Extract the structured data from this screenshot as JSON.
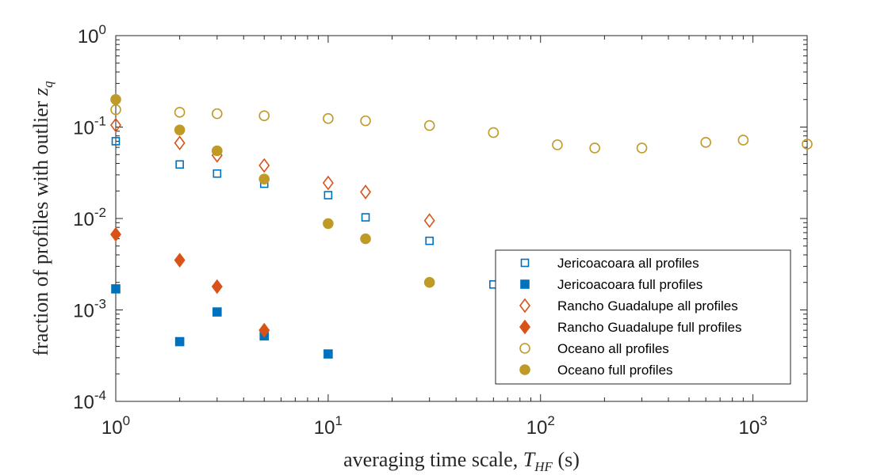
{
  "chart_data": {
    "type": "scatter",
    "xscale": "log",
    "yscale": "log",
    "xlim": [
      1,
      1800
    ],
    "ylim": [
      0.0001,
      1
    ],
    "xticks": [
      {
        "base": "10",
        "exp": "0"
      },
      {
        "base": "10",
        "exp": "1"
      },
      {
        "base": "10",
        "exp": "2"
      },
      {
        "base": "10",
        "exp": "3"
      }
    ],
    "yticks": [
      {
        "base": "10",
        "exp": "0"
      },
      {
        "base": "10",
        "exp": "-1"
      },
      {
        "base": "10",
        "exp": "-2"
      },
      {
        "base": "10",
        "exp": "-3"
      },
      {
        "base": "10",
        "exp": "-4"
      }
    ],
    "xlabel": {
      "main": "averaging time scale, ",
      "var": "T",
      "sub": "HF",
      "unit": " (s)"
    },
    "ylabel": {
      "main": "fraction of profiles with outlier ",
      "var": "z",
      "sub": "q"
    },
    "grid": false,
    "legend_position": "bottom-right",
    "series": [
      {
        "name": "Jericoacoara all profiles",
        "marker": "square",
        "filled": false,
        "color": "#0072BD",
        "x": [
          1,
          2,
          3,
          5,
          10,
          15,
          30,
          60
        ],
        "y": [
          0.07,
          0.039,
          0.031,
          0.024,
          0.018,
          0.0103,
          0.0057,
          0.0019
        ]
      },
      {
        "name": "Jericoacoara full profiles",
        "marker": "square",
        "filled": true,
        "color": "#0072BD",
        "x": [
          1,
          2,
          3,
          5,
          10
        ],
        "y": [
          0.0017,
          0.00045,
          0.00095,
          0.00052,
          0.00033
        ]
      },
      {
        "name": "Rancho Guadalupe all profiles",
        "marker": "diamond",
        "filled": false,
        "color": "#D95319",
        "x": [
          1,
          2,
          3,
          5,
          10,
          15,
          30
        ],
        "y": [
          0.105,
          0.067,
          0.049,
          0.038,
          0.0245,
          0.0195,
          0.0095
        ]
      },
      {
        "name": "Rancho Guadalupe full profiles",
        "marker": "diamond",
        "filled": true,
        "color": "#D95319",
        "x": [
          1,
          2,
          3,
          5
        ],
        "y": [
          0.0067,
          0.0035,
          0.0018,
          0.0006
        ]
      },
      {
        "name": "Oceano all profiles",
        "marker": "circle",
        "filled": false,
        "color": "#BF9A27",
        "x": [
          1,
          2,
          3,
          5,
          10,
          15,
          30,
          60,
          120,
          180,
          300,
          600,
          900,
          1800
        ],
        "y": [
          0.155,
          0.145,
          0.14,
          0.133,
          0.124,
          0.117,
          0.104,
          0.087,
          0.064,
          0.059,
          0.059,
          0.068,
          0.072,
          0.065
        ]
      },
      {
        "name": "Oceano full profiles",
        "marker": "circle",
        "filled": true,
        "color": "#BF9A27",
        "x": [
          1,
          2,
          3,
          5,
          10,
          15,
          30
        ],
        "y": [
          0.2,
          0.093,
          0.055,
          0.027,
          0.0088,
          0.006,
          0.002
        ]
      }
    ]
  }
}
